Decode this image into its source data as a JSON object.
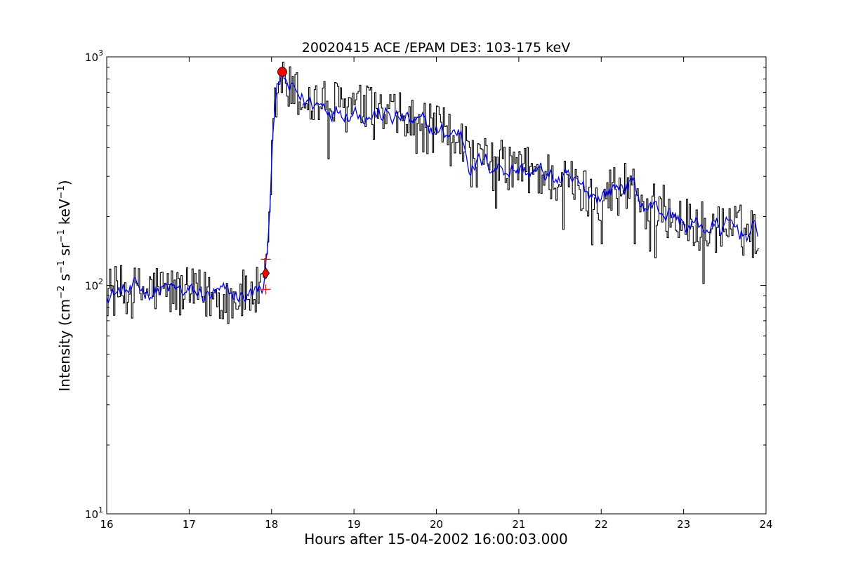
{
  "chart_data": {
    "type": "line",
    "title": "20020415 ACE /EPAM DE3: 103-175 keV",
    "xlabel": "Hours after 15-04-2002 16:00:03.000",
    "ylabel_parts": [
      "Intensity (cm",
      "−2",
      " s",
      "−1",
      " sr",
      "−1",
      " keV",
      "−1",
      ")"
    ],
    "xlim": [
      16,
      24
    ],
    "ylim": [
      10,
      1000
    ],
    "yscale": "log",
    "grid": false,
    "x_ticks": [
      16,
      17,
      18,
      19,
      20,
      21,
      22,
      23,
      24
    ],
    "x_tick_labels": [
      "16",
      "17",
      "18",
      "19",
      "20",
      "21",
      "22",
      "23",
      "24"
    ],
    "y_major_ticks": [
      10,
      100,
      1000
    ],
    "y_tick_labels": [
      {
        "base": "10",
        "exp": "1"
      },
      {
        "base": "10",
        "exp": "2"
      },
      {
        "base": "10",
        "exp": "3"
      }
    ],
    "series": [
      {
        "kind": "raw",
        "color": "#000000",
        "noise_amp": 0.21,
        "x": [
          16.0,
          16.3,
          16.6,
          16.9,
          17.2,
          17.5,
          17.8,
          17.9,
          17.93,
          17.97,
          18.02,
          18.07,
          18.13,
          18.2,
          18.4,
          18.7,
          19.0,
          19.3,
          19.6,
          19.9,
          20.1,
          20.3,
          20.4,
          20.6,
          20.9,
          21.2,
          21.5,
          21.8,
          22.0,
          22.2,
          22.35,
          22.5,
          22.8,
          23.0,
          23.3,
          23.6,
          23.9
        ],
        "y": [
          95,
          93,
          97,
          92,
          90,
          88,
          92,
          95,
          110,
          180,
          550,
          720,
          800,
          720,
          640,
          610,
          600,
          560,
          530,
          480,
          460,
          470,
          350,
          340,
          330,
          310,
          290,
          255,
          250,
          270,
          285,
          225,
          210,
          185,
          180,
          175,
          170
        ]
      },
      {
        "kind": "smoothed",
        "color": "#0000ff",
        "noise_amp": 0.08,
        "x": [
          16.0,
          16.3,
          16.6,
          16.9,
          17.2,
          17.5,
          17.8,
          17.9,
          17.93,
          17.97,
          18.02,
          18.07,
          18.13,
          18.2,
          18.4,
          18.7,
          19.0,
          19.3,
          19.6,
          19.9,
          20.1,
          20.3,
          20.4,
          20.6,
          20.9,
          21.2,
          21.5,
          21.8,
          22.0,
          22.2,
          22.35,
          22.5,
          22.8,
          23.0,
          23.3,
          23.6,
          23.9
        ],
        "y": [
          95,
          93,
          97,
          92,
          90,
          88,
          92,
          95,
          110,
          180,
          550,
          720,
          800,
          720,
          640,
          610,
          600,
          560,
          530,
          480,
          460,
          470,
          350,
          340,
          330,
          310,
          290,
          255,
          250,
          270,
          285,
          225,
          210,
          185,
          180,
          175,
          170
        ]
      }
    ],
    "markers": [
      {
        "name": "onset",
        "shape": "diamond",
        "x": 17.93,
        "y": 113,
        "color": "#ff0000"
      },
      {
        "name": "onset-upper-bound",
        "shape": "plus",
        "x": 17.93,
        "y": 130,
        "color": "#ff0000"
      },
      {
        "name": "onset-lower-bound",
        "shape": "plus",
        "x": 17.93,
        "y": 96,
        "color": "#ff0000"
      },
      {
        "name": "peak",
        "shape": "circle",
        "x": 18.13,
        "y": 860,
        "color": "#ff0000"
      }
    ]
  }
}
